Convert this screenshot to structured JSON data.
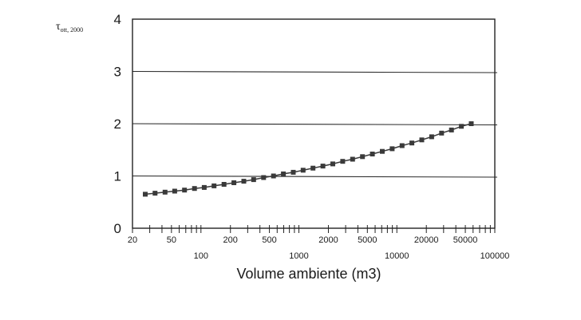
{
  "chart_data": {
    "type": "line",
    "ylabel_main": "τ",
    "ylabel_sub": "ott, 2000",
    "xlabel": "Volume ambiente (m3)",
    "x_scale": "log",
    "xlim": [
      20,
      100000
    ],
    "ylim": [
      0,
      4
    ],
    "grid": "horizontal",
    "y_ticks": [
      0,
      1,
      2,
      3,
      4
    ],
    "x_tick_labels_upper": [
      "20",
      "50",
      "200",
      "500",
      "2000",
      "5000",
      "20000",
      "50000"
    ],
    "x_tick_labels_lower": [
      "100",
      "1000",
      "10000",
      "100000"
    ],
    "x_minor_ticks": [
      20,
      30,
      40,
      50,
      60,
      70,
      80,
      90,
      100,
      200,
      300,
      400,
      500,
      600,
      700,
      800,
      900,
      1000,
      2000,
      3000,
      4000,
      5000,
      6000,
      7000,
      8000,
      9000,
      10000,
      20000,
      30000,
      40000,
      50000,
      60000,
      70000,
      80000,
      90000,
      100000
    ],
    "series": [
      {
        "color": "#3a3a3a",
        "marker": "square",
        "x": [
          27,
          34,
          43,
          54,
          68,
          86,
          108,
          136,
          172,
          217,
          274,
          345,
          436,
          550,
          694,
          876,
          1105,
          1394,
          1759,
          2219,
          2800,
          3533,
          4457,
          5623,
          7095,
          8952,
          11295,
          14251,
          17981,
          22686,
          28623,
          36113,
          45564,
          57489
        ],
        "values": [
          0.65,
          0.67,
          0.69,
          0.71,
          0.73,
          0.76,
          0.78,
          0.81,
          0.84,
          0.87,
          0.9,
          0.93,
          0.97,
          1.0,
          1.04,
          1.07,
          1.11,
          1.15,
          1.19,
          1.23,
          1.28,
          1.32,
          1.37,
          1.42,
          1.47,
          1.52,
          1.58,
          1.63,
          1.69,
          1.75,
          1.82,
          1.88,
          1.95,
          2.0
        ]
      }
    ]
  }
}
